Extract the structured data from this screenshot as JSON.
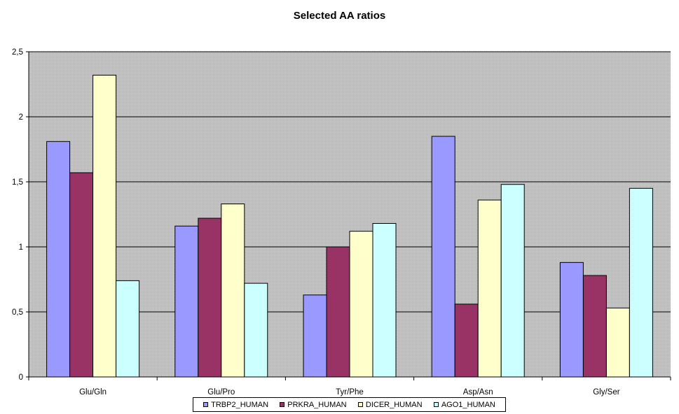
{
  "chart_data": {
    "type": "bar",
    "title": "Selected AA ratios",
    "xlabel": "",
    "ylabel": "",
    "ylim": [
      0,
      2.5
    ],
    "yticks": [
      "0",
      "0,5",
      "1",
      "1,5",
      "2",
      "2,5"
    ],
    "ytick_values": [
      0,
      0.5,
      1,
      1.5,
      2,
      2.5
    ],
    "categories": [
      "Glu/Gln",
      "Glu/Pro",
      "Tyr/Phe",
      "Asp/Asn",
      "Gly/Ser"
    ],
    "series": [
      {
        "name": "TRBP2_HUMAN",
        "color": "#9999ff",
        "values": [
          1.81,
          1.16,
          0.63,
          1.85,
          0.88
        ]
      },
      {
        "name": "PRKRA_HUMAN",
        "color": "#993366",
        "values": [
          1.57,
          1.22,
          1.0,
          0.56,
          0.78
        ]
      },
      {
        "name": "DICER_HUMAN",
        "color": "#ffffcc",
        "values": [
          2.32,
          1.33,
          1.12,
          1.36,
          0.53
        ]
      },
      {
        "name": "AGO1_HUMAN",
        "color": "#ccffff",
        "values": [
          0.74,
          0.72,
          1.18,
          1.48,
          1.45
        ]
      }
    ],
    "grid": true,
    "legend_position": "bottom",
    "plot_background": "#c0c0c0"
  }
}
